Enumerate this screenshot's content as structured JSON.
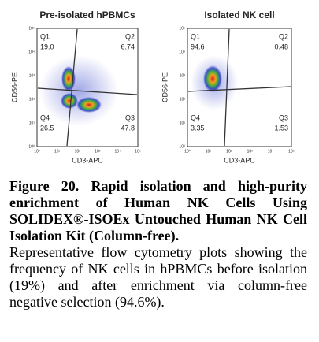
{
  "panels": [
    {
      "title": "Pre-isolated hPBMCs",
      "x_label": "CD3-APC",
      "y_label": "CD56-PE",
      "quadrants": [
        {
          "name": "Q1",
          "value": "19.0"
        },
        {
          "name": "Q2",
          "value": "6.74"
        },
        {
          "name": "Q3",
          "value": "47.8"
        },
        {
          "name": "Q4",
          "value": "26.5"
        }
      ]
    },
    {
      "title": "Isolated NK cell",
      "x_label": "CD3-APC",
      "y_label": "CD56-PE",
      "quadrants": [
        {
          "name": "Q1",
          "value": "94.6"
        },
        {
          "name": "Q2",
          "value": "0.48"
        },
        {
          "name": "Q3",
          "value": "1.53"
        },
        {
          "name": "Q4",
          "value": "3.35"
        }
      ]
    }
  ],
  "axis_ticks": [
    "10⁰",
    "10¹",
    "10²",
    "10³",
    "10⁴",
    "10⁵"
  ],
  "caption": {
    "title": "Figure 20. Rapid isolation and high-purity enrichment of Human NK Cells Using SOLIDEX®-ISOEx Untouched Human NK Cell Isolation Kit (Column-free).",
    "body": "Representative flow cytometry plots showing the frequency of NK cells in hPBMCs before isolation (19%) and after enrichment via column-free negative selection (94.6%)."
  }
}
